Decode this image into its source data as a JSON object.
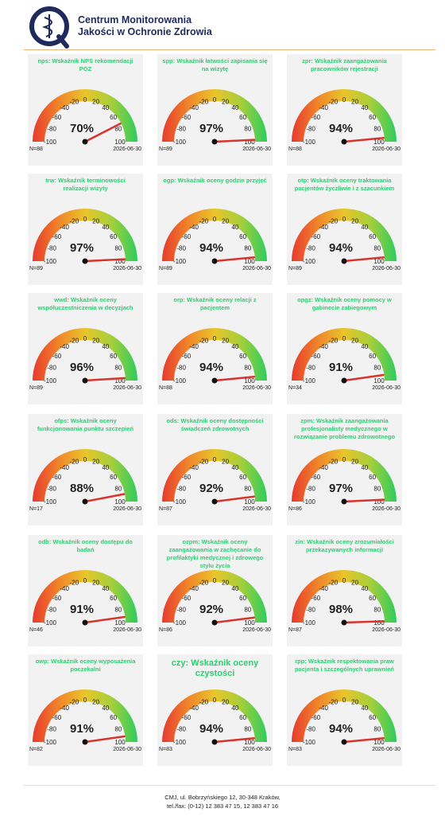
{
  "header": {
    "title_lines": [
      "Centrum Monitorowania",
      "Jakości w Ochronie Zdrowia"
    ]
  },
  "footer": {
    "lines": [
      "CMJ, ul. Bobrzyńskiego 12, 30-348 Kraków,",
      "tel./fax: (0-12) 12 383 47 15, 12 383 47 16"
    ]
  },
  "chart_data": [
    {
      "type": "gauge",
      "title": "nps: Wskaźnik NPS rekomendacji POZ",
      "value": 70,
      "value_label": "70%",
      "n_label": "N=88",
      "date": "2026-06-30",
      "ylim": [
        -100,
        100
      ],
      "yticks": [
        -100,
        -80,
        -60,
        -40,
        -20,
        0,
        20,
        40,
        60,
        80,
        100
      ]
    },
    {
      "type": "gauge",
      "title": "spp: Wskaźnik łatwości zapisania się na wizytę",
      "value": 97,
      "value_label": "97%",
      "n_label": "N=89",
      "date": "2026-06-30",
      "ylim": [
        -100,
        100
      ],
      "yticks": [
        -100,
        -80,
        -60,
        -40,
        -20,
        0,
        20,
        40,
        60,
        80,
        100
      ]
    },
    {
      "type": "gauge",
      "title": "zpr: Wskaźnik zaangażowania pracowników rejestracji",
      "value": 94,
      "value_label": "94%",
      "n_label": "N=88",
      "date": "2026-06-30",
      "ylim": [
        -100,
        100
      ],
      "yticks": [
        -100,
        -80,
        -60,
        -40,
        -20,
        0,
        20,
        40,
        60,
        80,
        100
      ]
    },
    {
      "type": "gauge",
      "title": "trw: Wskaźnik terminowości realizacji wizyty",
      "value": 97,
      "value_label": "97%",
      "n_label": "N=89",
      "date": "2026-06-30",
      "ylim": [
        -100,
        100
      ],
      "yticks": [
        -100,
        -80,
        -60,
        -40,
        -20,
        0,
        20,
        40,
        60,
        80,
        100
      ]
    },
    {
      "type": "gauge",
      "title": "ogp: Wskaźnik oceny godzin przyjęć",
      "value": 94,
      "value_label": "94%",
      "n_label": "N=89",
      "date": "2026-06-30",
      "ylim": [
        -100,
        100
      ],
      "yticks": [
        -100,
        -80,
        -60,
        -40,
        -20,
        0,
        20,
        40,
        60,
        80,
        100
      ]
    },
    {
      "type": "gauge",
      "title": "otp: Wskaźnik oceny traktowania pacjentów życzliwie i z szacunkiem",
      "value": 94,
      "value_label": "94%",
      "n_label": "N=89",
      "date": "2026-06-30",
      "ylim": [
        -100,
        100
      ],
      "yticks": [
        -100,
        -80,
        -60,
        -40,
        -20,
        0,
        20,
        40,
        60,
        80,
        100
      ]
    },
    {
      "type": "gauge",
      "title": "wwd: Wskaźnik oceny współuczestniczenia w decyzjach",
      "value": 96,
      "value_label": "96%",
      "n_label": "N=89",
      "date": "2026-06-30",
      "ylim": [
        -100,
        100
      ],
      "yticks": [
        -100,
        -80,
        -60,
        -40,
        -20,
        0,
        20,
        40,
        60,
        80,
        100
      ]
    },
    {
      "type": "gauge",
      "title": "orp: Wskaźnik oceny relacji z pacjentem",
      "value": 94,
      "value_label": "94%",
      "n_label": "N=88",
      "date": "2026-06-30",
      "ylim": [
        -100,
        100
      ],
      "yticks": [
        -100,
        -80,
        -60,
        -40,
        -20,
        0,
        20,
        40,
        60,
        80,
        100
      ]
    },
    {
      "type": "gauge",
      "title": "opgz: Wskaźnik oceny pomocy w gabinecie zabiegowym",
      "value": 91,
      "value_label": "91%",
      "n_label": "N=34",
      "date": "2026-06-30",
      "ylim": [
        -100,
        100
      ],
      "yticks": [
        -100,
        -80,
        -60,
        -40,
        -20,
        0,
        20,
        40,
        60,
        80,
        100
      ]
    },
    {
      "type": "gauge",
      "title": "ofps: Wskaźnik oceny funkcjonowania punktu szczepień",
      "value": 88,
      "value_label": "88%",
      "n_label": "N=17",
      "date": "2026-06-30",
      "ylim": [
        -100,
        100
      ],
      "yticks": [
        -100,
        -80,
        -60,
        -40,
        -20,
        0,
        20,
        40,
        60,
        80,
        100
      ]
    },
    {
      "type": "gauge",
      "title": "ods: Wskaźnik oceny dostępności świadczeń zdrowotnych",
      "value": 92,
      "value_label": "92%",
      "n_label": "N=87",
      "date": "2026-06-30",
      "ylim": [
        -100,
        100
      ],
      "yticks": [
        -100,
        -80,
        -60,
        -40,
        -20,
        0,
        20,
        40,
        60,
        80,
        100
      ]
    },
    {
      "type": "gauge",
      "title": "zpm: Wskaźnik zaangażowania profesjonalisty medycznego w rozwiązanie problemu zdrowotnego",
      "value": 97,
      "value_label": "97%",
      "n_label": "N=86",
      "date": "2026-06-30",
      "ylim": [
        -100,
        100
      ],
      "yticks": [
        -100,
        -80,
        -60,
        -40,
        -20,
        0,
        20,
        40,
        60,
        80,
        100
      ]
    },
    {
      "type": "gauge",
      "title": "odb: Wskaźnik oceny dostępu do badań",
      "value": 91,
      "value_label": "91%",
      "n_label": "N=46",
      "date": "2026-06-30",
      "ylim": [
        -100,
        100
      ],
      "yticks": [
        -100,
        -80,
        -60,
        -40,
        -20,
        0,
        20,
        40,
        60,
        80,
        100
      ]
    },
    {
      "type": "gauge",
      "title": "ozpm: Wskaźnik oceny zaangażowania w zachęcanie do profilaktyki medycznej i zdrowego stylu życia",
      "value": 92,
      "value_label": "92%",
      "n_label": "N=86",
      "date": "2026-06-30",
      "ylim": [
        -100,
        100
      ],
      "yticks": [
        -100,
        -80,
        -60,
        -40,
        -20,
        0,
        20,
        40,
        60,
        80,
        100
      ]
    },
    {
      "type": "gauge",
      "title": "zin: Wskaźnik oceny zrozumiałości przekazywanych informacji",
      "value": 98,
      "value_label": "98%",
      "n_label": "N=87",
      "date": "2026-06-30",
      "ylim": [
        -100,
        100
      ],
      "yticks": [
        -100,
        -80,
        -60,
        -40,
        -20,
        0,
        20,
        40,
        60,
        80,
        100
      ]
    },
    {
      "type": "gauge",
      "title": "owp: Wskaźnik oceny wyposażenia poczekalni",
      "value": 91,
      "value_label": "91%",
      "n_label": "N=82",
      "date": "2026-06-30",
      "ylim": [
        -100,
        100
      ],
      "yticks": [
        -100,
        -80,
        -60,
        -40,
        -20,
        0,
        20,
        40,
        60,
        80,
        100
      ]
    },
    {
      "type": "gauge",
      "title": "czy: Wskaźnik oceny czystości",
      "value": 94,
      "value_label": "94%",
      "n_label": "N=83",
      "date": "2026-06-30",
      "ylim": [
        -100,
        100
      ],
      "yticks": [
        -100,
        -80,
        -60,
        -40,
        -20,
        0,
        20,
        40,
        60,
        80,
        100
      ]
    },
    {
      "type": "gauge",
      "title": "rpp: Wskaźnik respektowania praw pacjenta i szczególnych uprawnień",
      "value": 94,
      "value_label": "94%",
      "n_label": "N=83",
      "date": "2026-06-30",
      "ylim": [
        -100,
        100
      ],
      "yticks": [
        -100,
        -80,
        -60,
        -40,
        -20,
        0,
        20,
        40,
        60,
        80,
        100
      ]
    }
  ]
}
